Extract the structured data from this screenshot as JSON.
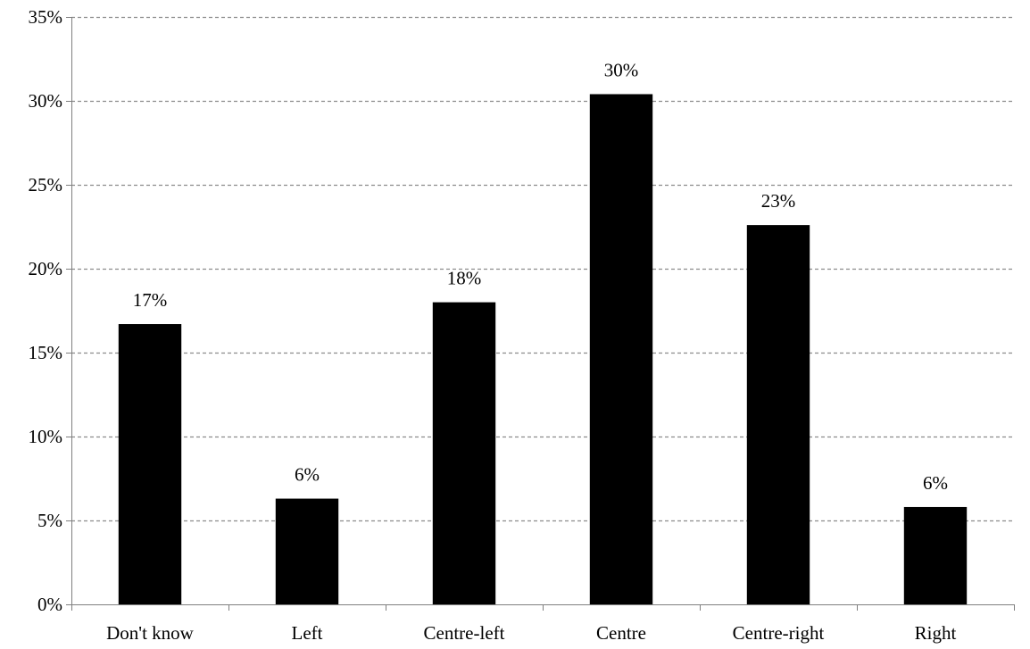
{
  "chart_data": {
    "type": "bar",
    "categories": [
      "Don't know",
      "Left",
      "Centre-left",
      "Centre",
      "Centre-right",
      "Right"
    ],
    "values": [
      16.7,
      6.3,
      18.0,
      30.4,
      22.6,
      5.8
    ],
    "data_labels": [
      "17%",
      "6%",
      "18%",
      "30%",
      "23%",
      "6%"
    ],
    "y_ticks": [
      0,
      5,
      10,
      15,
      20,
      25,
      30,
      35
    ],
    "y_tick_labels": [
      "0%",
      "5%",
      "10%",
      "15%",
      "20%",
      "25%",
      "30%",
      "35%"
    ],
    "ylim": [
      0,
      35
    ],
    "grid": true,
    "bar_color": "#000000",
    "grid_color": "#8c8c8c",
    "axis_color": "#7f7f7f"
  }
}
